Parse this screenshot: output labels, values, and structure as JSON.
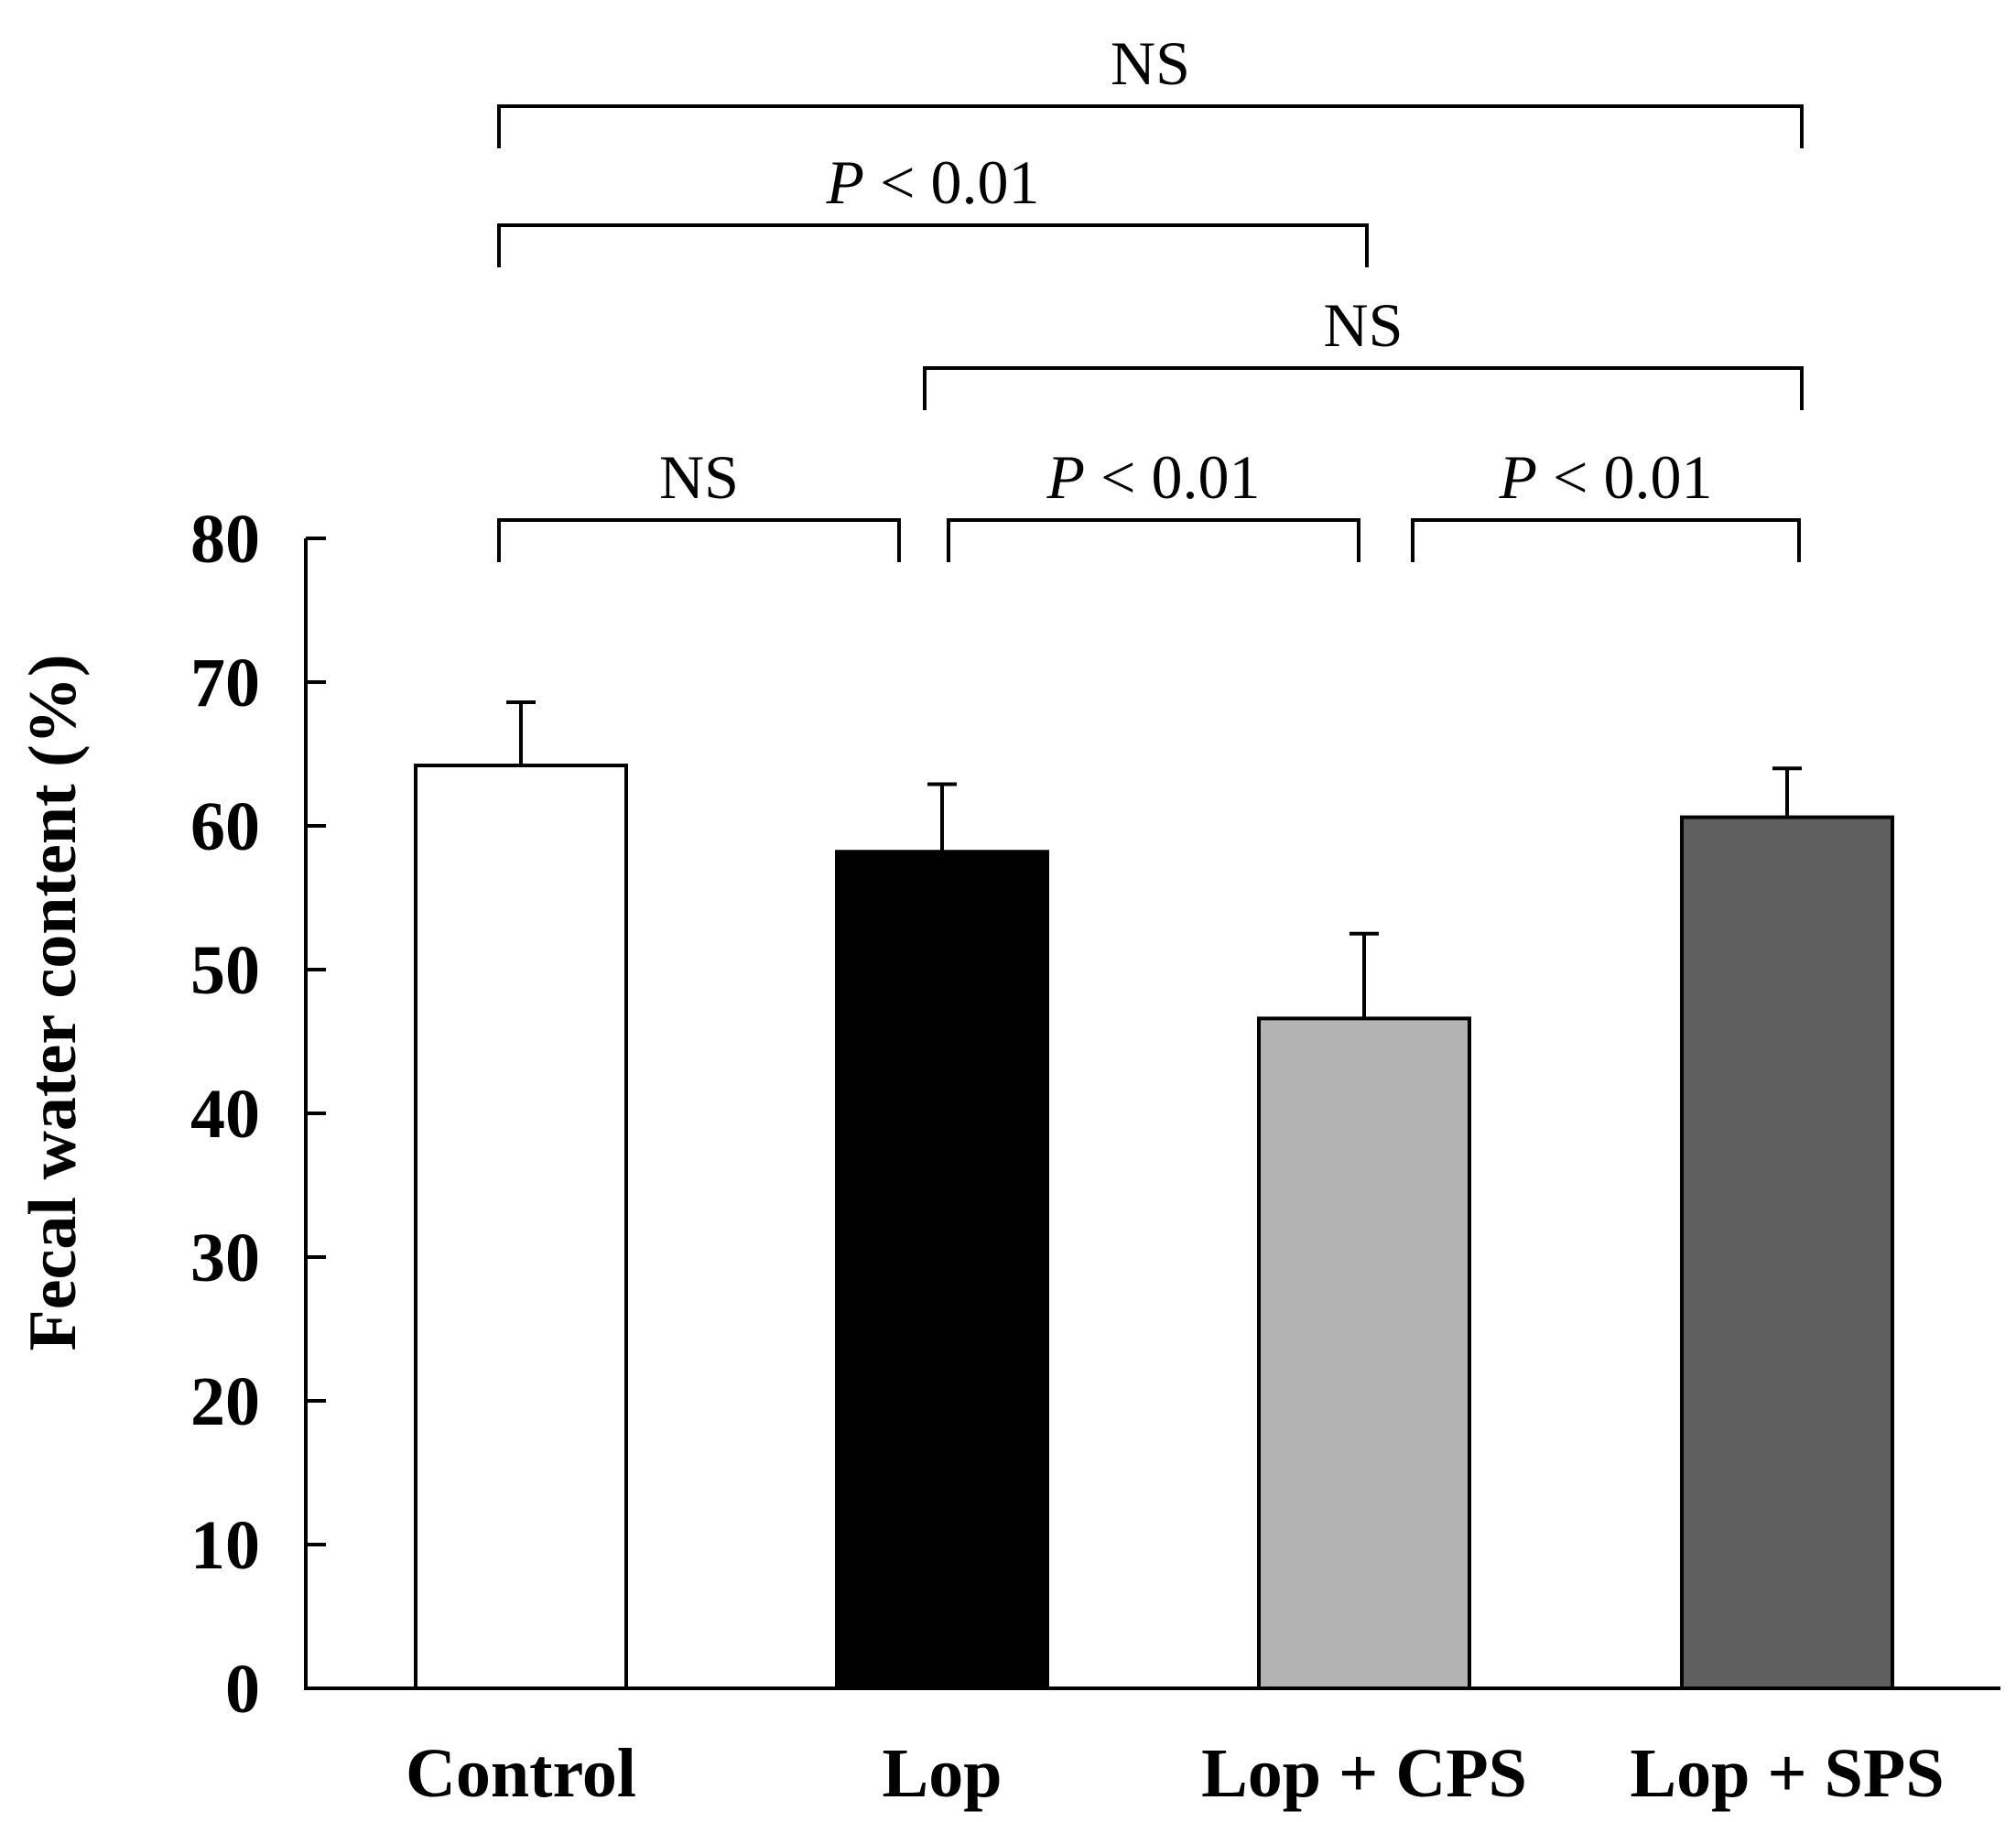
{
  "chart_data": {
    "type": "bar",
    "title": "",
    "xlabel": "",
    "ylabel": "Fecal water content  (%)",
    "ylim": [
      0,
      80
    ],
    "yticks": [
      0,
      10,
      20,
      30,
      40,
      50,
      60,
      70,
      80
    ],
    "categories": [
      "Control",
      "Lop",
      "Lop + CPS",
      "Lop + SPS"
    ],
    "values": [
      64.2,
      58.2,
      46.6,
      60.6
    ],
    "errors": [
      4.4,
      4.7,
      5.9,
      3.4
    ],
    "colors": [
      "#ffffff",
      "#000000",
      "#b3b3b3",
      "#5f5f5f"
    ],
    "comparisons": [
      {
        "from": 0,
        "to": 1,
        "p_prefix": "",
        "p_text": "NS",
        "level": 0
      },
      {
        "from": 1,
        "to": 2,
        "p_prefix": "P",
        "p_text": " < 0.01",
        "level": 0
      },
      {
        "from": 2,
        "to": 3,
        "p_prefix": "P",
        "p_text": " < 0.01",
        "level": 0
      },
      {
        "from": 1,
        "to": 3,
        "p_prefix": "",
        "p_text": "NS",
        "level": 1
      },
      {
        "from": 0,
        "to": 2,
        "p_prefix": "P",
        "p_text": " < 0.01",
        "level": 2
      },
      {
        "from": 0,
        "to": 3,
        "p_prefix": "",
        "p_text": "NS",
        "level": 3
      }
    ]
  }
}
